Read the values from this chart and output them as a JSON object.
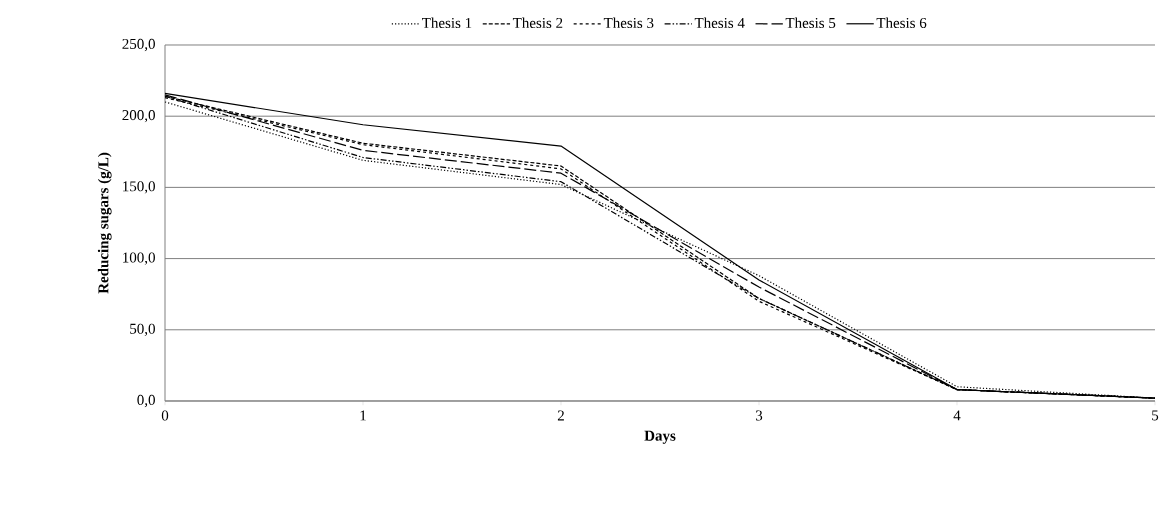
{
  "chart_data": {
    "type": "line",
    "xlabel": "Days",
    "ylabel": "Reducing sugars (g/L)",
    "x": [
      0,
      1,
      2,
      3,
      4,
      5
    ],
    "series": [
      {
        "name": "Thesis 1",
        "color": "#000000",
        "line_style": "dotted",
        "values": [
          210,
          169,
          152,
          88,
          10,
          2
        ]
      },
      {
        "name": "Thesis 2",
        "color": "#000000",
        "line_style": "densely dashed",
        "values": [
          214,
          181,
          165,
          72,
          8,
          2
        ]
      },
      {
        "name": "Thesis 3",
        "color": "#000000",
        "line_style": "dashed",
        "values": [
          213,
          180,
          163,
          70,
          8,
          2
        ]
      },
      {
        "name": "Thesis 4",
        "color": "#000000",
        "line_style": "dash dot dot",
        "values": [
          214,
          171,
          154,
          72,
          8,
          2
        ]
      },
      {
        "name": "Thesis 5",
        "color": "#000000",
        "line_style": "long dashed",
        "values": [
          215,
          176,
          160,
          80,
          8,
          2
        ]
      },
      {
        "name": "Thesis 6",
        "color": "#000000",
        "line_style": "solid",
        "values": [
          216,
          194,
          179,
          85,
          8,
          2
        ]
      }
    ],
    "xlim": [
      0,
      5
    ],
    "xticks": [
      0,
      1,
      2,
      3,
      4,
      5
    ],
    "ylim": [
      0,
      250
    ],
    "yticks": [
      {
        "value": 0,
        "label": "0,0"
      },
      {
        "value": 50,
        "label": "50,0"
      },
      {
        "value": 100,
        "label": "100,0"
      },
      {
        "value": 150,
        "label": "150,0"
      },
      {
        "value": 200,
        "label": "200,0"
      },
      {
        "value": 250,
        "label": "250,0"
      }
    ],
    "grid": "y",
    "legend": "top",
    "marker": "none"
  }
}
